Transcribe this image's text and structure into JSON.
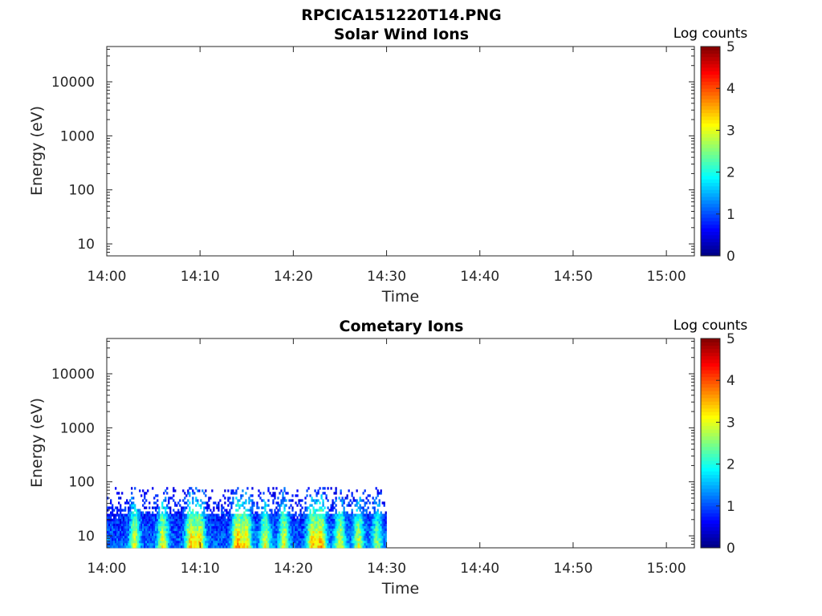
{
  "title": "RPCICA151220T14.PNG",
  "colorbar_label": "Log counts",
  "colorbar_ticks": [
    "0",
    "1",
    "2",
    "3",
    "4",
    "5"
  ],
  "chart_data": [
    {
      "type": "heatmap",
      "title": "Solar Wind Ions",
      "xlabel": "Time",
      "ylabel": "Energy (eV)",
      "x_ticks": [
        "14:00",
        "14:10",
        "14:20",
        "14:30",
        "14:40",
        "14:50",
        "15:00"
      ],
      "xlim": [
        "14:00",
        "15:03"
      ],
      "y_scale": "log",
      "y_ticks": [
        "10",
        "100",
        "1000",
        "10000"
      ],
      "ylim": [
        6,
        45000
      ],
      "colorbar": {
        "label": "Log counts",
        "range": [
          0,
          5
        ],
        "colormap": "jet"
      },
      "data": []
    },
    {
      "type": "heatmap",
      "title": "Cometary Ions",
      "xlabel": "Time",
      "ylabel": "Energy (eV)",
      "x_ticks": [
        "14:00",
        "14:10",
        "14:20",
        "14:30",
        "14:40",
        "14:50",
        "15:00"
      ],
      "xlim": [
        "14:00",
        "15:03"
      ],
      "y_scale": "log",
      "y_ticks": [
        "10",
        "100",
        "1000",
        "10000"
      ],
      "ylim": [
        6,
        45000
      ],
      "colorbar": {
        "label": "Log counts",
        "range": [
          0,
          5
        ],
        "colormap": "jet"
      },
      "data_time_range": [
        "14:00",
        "14:30"
      ],
      "data_energy_range_eV": [
        6,
        80
      ],
      "peak_bursts": [
        {
          "time": "14:03",
          "log_counts": 3.0
        },
        {
          "time": "14:06",
          "log_counts": 3.2
        },
        {
          "time": "14:09",
          "log_counts": 3.4
        },
        {
          "time": "14:10",
          "log_counts": 3.3
        },
        {
          "time": "14:14",
          "log_counts": 3.6
        },
        {
          "time": "14:15",
          "log_counts": 3.2
        },
        {
          "time": "14:17",
          "log_counts": 3.0
        },
        {
          "time": "14:19",
          "log_counts": 3.1
        },
        {
          "time": "14:22",
          "log_counts": 3.3
        },
        {
          "time": "14:23",
          "log_counts": 3.5
        },
        {
          "time": "14:25",
          "log_counts": 3.1
        },
        {
          "time": "14:27",
          "log_counts": 3.0
        },
        {
          "time": "14:29",
          "log_counts": 2.6
        }
      ]
    }
  ]
}
